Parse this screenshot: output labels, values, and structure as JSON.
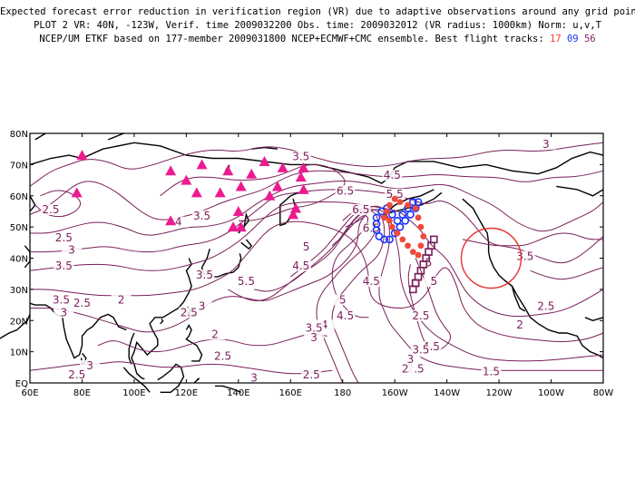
{
  "title": {
    "line1": "Expected forecast error reduction in verification region (VR) due to adaptive observations around any grid point.",
    "line2": "PLOT 2 VR: 40N, -123W, Verif. time 2009032200 Obs. time: 2009032012 (VR radius: 1000km) Norm: u,v,T",
    "line3_prefix": "NCEP/UM ETKF based on 177-member 2009031800 NCEP+ECMWF+CMC ensemble. Best flight tracks:",
    "track1": "17",
    "track2": "09",
    "track3": "56"
  },
  "axes": {
    "y_ticks": [
      "80N",
      "70N",
      "60N",
      "50N",
      "40N",
      "30N",
      "20N",
      "10N",
      "EQ"
    ],
    "x_ticks": [
      "60E",
      "80E",
      "100E",
      "120E",
      "140E",
      "160E",
      "180",
      "160W",
      "140W",
      "120W",
      "100W",
      "80W"
    ]
  },
  "contour_labels": [
    {
      "text": "3.5",
      "lon": 164,
      "lat": 72
    },
    {
      "text": "4",
      "lon": 136,
      "lat": 68
    },
    {
      "text": "3",
      "lon": 258,
      "lat": 76
    },
    {
      "text": "4.5",
      "lon": 199,
      "lat": 66
    },
    {
      "text": "5.5",
      "lon": 200,
      "lat": 60
    },
    {
      "text": "6.5",
      "lon": 187,
      "lat": 55
    },
    {
      "text": "6.5",
      "lon": 181,
      "lat": 61
    },
    {
      "text": "6.5",
      "lon": 191,
      "lat": 49
    },
    {
      "text": "2.5",
      "lon": 68,
      "lat": 55
    },
    {
      "text": "2.5",
      "lon": 73,
      "lat": 46
    },
    {
      "text": "3",
      "lon": 76,
      "lat": 42
    },
    {
      "text": "3.5",
      "lon": 73,
      "lat": 37
    },
    {
      "text": "4",
      "lon": 117,
      "lat": 51
    },
    {
      "text": "3.5",
      "lon": 126,
      "lat": 53
    },
    {
      "text": "5",
      "lon": 166,
      "lat": 43
    },
    {
      "text": "4.5",
      "lon": 164,
      "lat": 37
    },
    {
      "text": "5.5",
      "lon": 143,
      "lat": 32
    },
    {
      "text": "3.5",
      "lon": 127,
      "lat": 34
    },
    {
      "text": "3",
      "lon": 126,
      "lat": 24
    },
    {
      "text": "2.5",
      "lon": 121,
      "lat": 22
    },
    {
      "text": "3.5",
      "lon": 72,
      "lat": 26
    },
    {
      "text": "3",
      "lon": 73,
      "lat": 22
    },
    {
      "text": "2.5",
      "lon": 80,
      "lat": 25
    },
    {
      "text": "2",
      "lon": 95,
      "lat": 26
    },
    {
      "text": "5",
      "lon": 180,
      "lat": 26
    },
    {
      "text": "4.5",
      "lon": 181,
      "lat": 21
    },
    {
      "text": "4",
      "lon": 173,
      "lat": 18
    },
    {
      "text": "3.5",
      "lon": 169,
      "lat": 17
    },
    {
      "text": "3",
      "lon": 169,
      "lat": 14
    },
    {
      "text": "4.5",
      "lon": 191,
      "lat": 32
    },
    {
      "text": "2.5",
      "lon": 210,
      "lat": 21
    },
    {
      "text": "5",
      "lon": 213,
      "lat": 38
    },
    {
      "text": "5",
      "lon": 215,
      "lat": 32
    },
    {
      "text": "4.5",
      "lon": 214,
      "lat": 11
    },
    {
      "text": "3.5",
      "lon": 210,
      "lat": 10
    },
    {
      "text": "3",
      "lon": 206,
      "lat": 7
    },
    {
      "text": "2.5",
      "lon": 208,
      "lat": 4
    },
    {
      "text": "2",
      "lon": 204,
      "lat": 4
    },
    {
      "text": "3.5",
      "lon": 250,
      "lat": 40
    },
    {
      "text": "2.5",
      "lon": 258,
      "lat": 24
    },
    {
      "text": "2",
      "lon": 248,
      "lat": 18
    },
    {
      "text": "1.5",
      "lon": 237,
      "lat": 3
    },
    {
      "text": "2",
      "lon": 131,
      "lat": 15
    },
    {
      "text": "2.5",
      "lon": 134,
      "lat": 8
    },
    {
      "text": "3",
      "lon": 146,
      "lat": 1
    },
    {
      "text": "2.5",
      "lon": 168,
      "lat": 2
    },
    {
      "text": "3",
      "lon": 83,
      "lat": 5
    },
    {
      "text": "2.5",
      "lon": 78,
      "lat": 2
    }
  ],
  "colors": {
    "contour": "#7a1f5a",
    "contour_label": "#7a1f5a",
    "triangle": "#ee1a8f",
    "track_red": "#f04a3a",
    "track_blue": "#1a35ff",
    "track_purple": "#7a1f5a",
    "vr_circle": "#e83030"
  },
  "triangles": [
    {
      "lon": 80,
      "lat": 73
    },
    {
      "lon": 78,
      "lat": 61
    },
    {
      "lon": 114,
      "lat": 68
    },
    {
      "lon": 114,
      "lat": 52
    },
    {
      "lon": 120,
      "lat": 65
    },
    {
      "lon": 124,
      "lat": 61
    },
    {
      "lon": 126,
      "lat": 70
    },
    {
      "lon": 133,
      "lat": 61
    },
    {
      "lon": 136,
      "lat": 68
    },
    {
      "lon": 141,
      "lat": 63
    },
    {
      "lon": 145,
      "lat": 67
    },
    {
      "lon": 150,
      "lat": 71
    },
    {
      "lon": 152,
      "lat": 60
    },
    {
      "lon": 157,
      "lat": 69
    },
    {
      "lon": 155,
      "lat": 63
    },
    {
      "lon": 165,
      "lat": 69
    },
    {
      "lon": 164,
      "lat": 66
    },
    {
      "lon": 162,
      "lat": 56
    },
    {
      "lon": 161,
      "lat": 54
    },
    {
      "lon": 140,
      "lat": 55
    },
    {
      "lon": 138,
      "lat": 50
    },
    {
      "lon": 141,
      "lat": 50
    },
    {
      "lon": 165,
      "lat": 62
    }
  ],
  "tracks": {
    "red": [
      [
        196,
        53
      ],
      [
        197,
        55
      ],
      [
        198,
        57
      ],
      [
        200,
        59
      ],
      [
        202,
        58
      ],
      [
        205,
        57
      ],
      [
        208,
        56
      ],
      [
        209,
        53
      ],
      [
        210,
        50
      ],
      [
        211,
        47
      ],
      [
        210,
        44
      ],
      [
        209,
        41
      ],
      [
        207,
        42
      ],
      [
        205,
        44
      ],
      [
        203,
        46
      ],
      [
        201,
        48
      ],
      [
        199,
        50
      ],
      [
        198,
        52
      ]
    ],
    "blue": [
      [
        193,
        53
      ],
      [
        193,
        51
      ],
      [
        193,
        49
      ],
      [
        194,
        47
      ],
      [
        196,
        46
      ],
      [
        198,
        46
      ],
      [
        200,
        48
      ],
      [
        202,
        50
      ],
      [
        204,
        52
      ],
      [
        206,
        54
      ],
      [
        208,
        56
      ],
      [
        209,
        58
      ],
      [
        207,
        58
      ],
      [
        205,
        56
      ],
      [
        203,
        54
      ],
      [
        201,
        52
      ],
      [
        199,
        54
      ],
      [
        197,
        56
      ],
      [
        195,
        55
      ]
    ],
    "purple": [
      [
        215,
        46
      ],
      [
        214,
        44
      ],
      [
        213,
        42
      ],
      [
        212,
        40
      ],
      [
        211,
        38
      ],
      [
        210,
        36
      ],
      [
        209,
        34
      ],
      [
        208,
        32
      ],
      [
        207,
        30
      ],
      [
        208,
        32
      ]
    ]
  },
  "vr_circle": {
    "lon": 237,
    "lat": 40
  }
}
